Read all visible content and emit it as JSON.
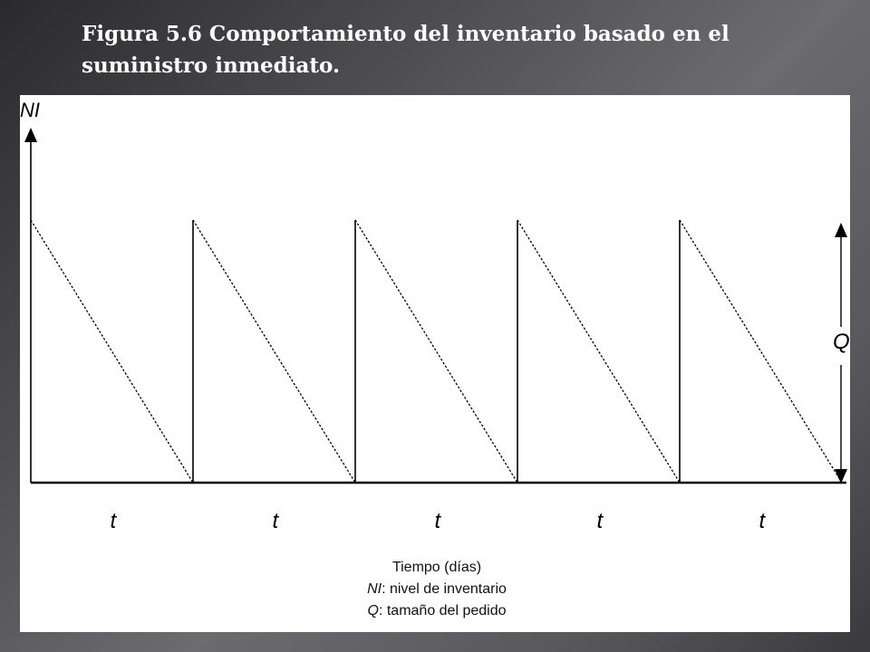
{
  "slide": {
    "title": "Figura 5.6 Comportamiento del inventario basado en el suministro inmediato."
  },
  "diagram": {
    "y_axis_label": "NI",
    "order_size_label": "Q",
    "cycle_label": "t",
    "cycles": 5,
    "legend": {
      "time_axis": "Tiempo (días)",
      "ni_term": "NI",
      "ni_desc": ": nivel de inventario",
      "q_term": "Q",
      "q_desc": ": tamaño del pedido"
    }
  }
}
